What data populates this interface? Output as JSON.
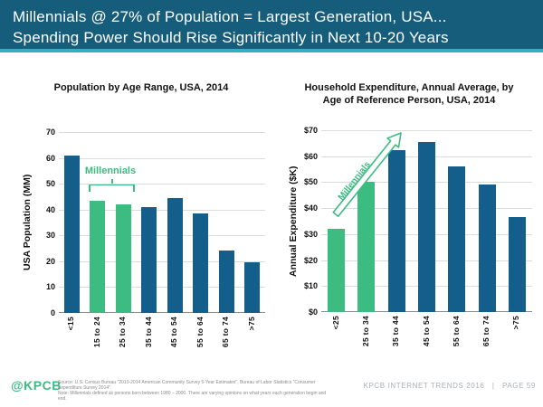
{
  "header": {
    "title_line1": "Millennials @ 27% of Population = Largest Generation, USA...",
    "title_line2": "Spending Power Should Rise Significantly in Next 10-20 Years",
    "bg_color": "#165D7C",
    "accent_line_color": "#38AFC0",
    "text_color": "#FFFFFF"
  },
  "colors": {
    "bar_blue": "#135E8A",
    "bar_green": "#3DBC82",
    "gridline": "#DCDCDC",
    "axis_line": "#8C8C8C"
  },
  "chart_data": [
    {
      "type": "bar",
      "title": "Population by Age Range, USA, 2014",
      "ylabel": "USA Population (MM)",
      "xlabel": "",
      "ylim": [
        0,
        70
      ],
      "ytick_labels": [
        "70",
        "60",
        "50",
        "40",
        "30",
        "20",
        "10",
        "0"
      ],
      "categories": [
        "<15",
        "15 to 24",
        "25 to 34",
        "35 to 44",
        "45 to 54",
        "55 to 64",
        "65 to 74",
        ">75"
      ],
      "values": [
        61,
        43.5,
        42,
        41,
        44.5,
        38.5,
        24,
        19.5
      ],
      "highlight_indices": [
        1,
        2
      ],
      "highlight_label": "Millennials",
      "grid": true,
      "legend": "none"
    },
    {
      "type": "bar",
      "title": "Household Expenditure, Annual Average, by Age of Reference Person, USA, 2014",
      "ylabel": "Annual Expenditure ($K)",
      "xlabel": "",
      "ylim": [
        0,
        70
      ],
      "ytick_labels": [
        "$70",
        "$60",
        "$50",
        "$40",
        "$30",
        "$20",
        "$10",
        "$0"
      ],
      "categories": [
        "<25",
        "25 to 34",
        "35 to 44",
        "45 to 54",
        "55 to 64",
        "65 to 74",
        ">75"
      ],
      "values": [
        32,
        50,
        62.5,
        65.5,
        56,
        49,
        36.5
      ],
      "highlight_indices": [
        0,
        1
      ],
      "highlight_label": "Millennials",
      "grid": true,
      "legend": "none"
    }
  ],
  "footer": {
    "logo_text": "@KPCB",
    "logo_color": "#3DBC82",
    "source_line1": "Source: U.S. Census Bureau \"2010-2014 American Community Survey 5-Year Estimates\", Bureau of Labor Statistics \"Consumer Expenditure Survey 2014\".",
    "source_line2": "Note: Millennials defined as persons born between 1980 – 2000. There are varying opinions on what years each generation begin and end.",
    "right_text": "KPCB INTERNET TRENDS 2016   |   PAGE 59"
  }
}
